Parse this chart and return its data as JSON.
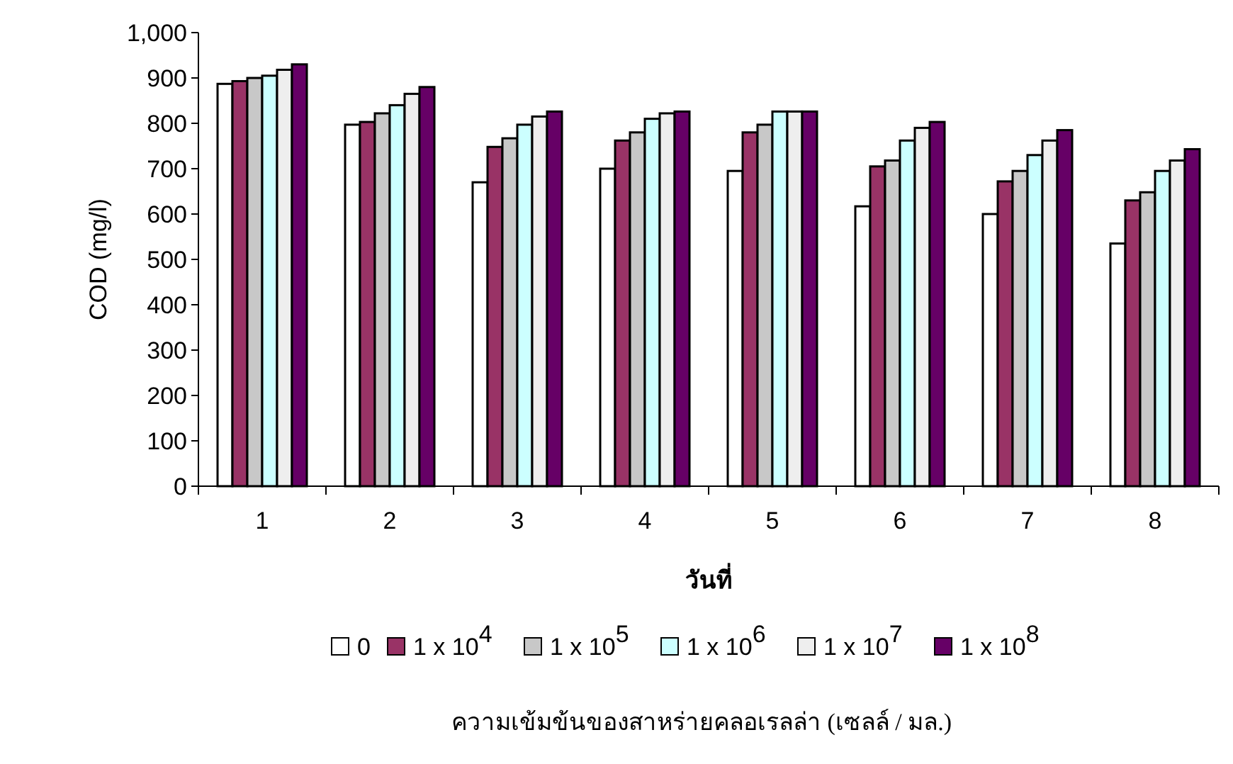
{
  "chart_data": {
    "type": "bar",
    "xlabel": "วันที่",
    "ylabel": "COD (mg/l)",
    "legend_title": "ความเข้มข้นของสาหร่ายคลอเรลล่า (เซลล์ / มล.)",
    "categories": [
      "1",
      "2",
      "3",
      "4",
      "5",
      "6",
      "7",
      "8"
    ],
    "series": [
      {
        "name": "0",
        "color": "#ffffff",
        "values": [
          887,
          797,
          670,
          700,
          695,
          617,
          600,
          535
        ]
      },
      {
        "name": "1 x 10$^{4}$",
        "color": "#993366",
        "values": [
          893,
          803,
          748,
          762,
          780,
          705,
          672,
          630
        ]
      },
      {
        "name": "1 x 10$^{5}$",
        "color": "#c8c8c8",
        "values": [
          900,
          822,
          767,
          780,
          797,
          718,
          695,
          648
        ]
      },
      {
        "name": "1 x 10$^{6}$",
        "color": "#ccffff",
        "values": [
          905,
          840,
          797,
          810,
          826,
          762,
          730,
          695
        ]
      },
      {
        "name": "1 x 10$^{7}$",
        "color": "#eeeeee",
        "values": [
          918,
          865,
          815,
          822,
          826,
          790,
          762,
          718
        ]
      },
      {
        "name": "1 x 10$^{8}$",
        "color": "#660066",
        "values": [
          930,
          880,
          826,
          826,
          826,
          803,
          785,
          743
        ]
      }
    ],
    "ylim": [
      0,
      1000
    ],
    "yticks": [
      0,
      100,
      200,
      300,
      400,
      500,
      600,
      700,
      800,
      900,
      {
        "value": 1000,
        "label": "1,000"
      }
    ],
    "grid": false,
    "legend": "bottom"
  }
}
